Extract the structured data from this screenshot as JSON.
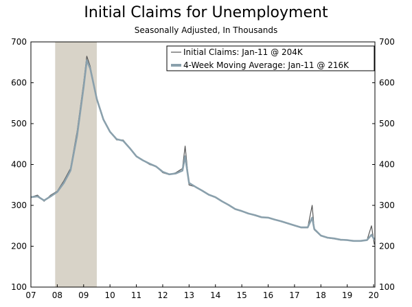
{
  "chart_data": {
    "type": "line",
    "title": "Initial Claims for Unemployment",
    "subtitle": "Seasonally Adjusted, In Thousands",
    "xlabel": "",
    "ylabel": "",
    "x_tick_labels": [
      "07",
      "08",
      "09",
      "10",
      "11",
      "12",
      "13",
      "14",
      "15",
      "16",
      "17",
      "18",
      "19",
      "20"
    ],
    "y_ticks": [
      100,
      200,
      300,
      400,
      500,
      600,
      700
    ],
    "ylim": [
      100,
      700
    ],
    "xlim": [
      2007.0,
      2020.05
    ],
    "grid": false,
    "legend_position": "top-right",
    "shaded_region": {
      "x_start": 2007.92,
      "x_end": 2009.5,
      "color": "#d8d3c8"
    },
    "series": [
      {
        "name": "Initial Claims: Jan-11 @ 204K",
        "color": "#555555",
        "x": [
          2007.0,
          2007.25,
          2007.5,
          2007.75,
          2008.0,
          2008.25,
          2008.5,
          2008.75,
          2009.0,
          2009.12,
          2009.25,
          2009.5,
          2009.75,
          2010.0,
          2010.25,
          2010.5,
          2010.75,
          2011.0,
          2011.25,
          2011.5,
          2011.75,
          2012.0,
          2012.25,
          2012.5,
          2012.75,
          2012.85,
          2013.0,
          2013.25,
          2013.5,
          2013.75,
          2014.0,
          2014.25,
          2014.5,
          2014.75,
          2015.0,
          2015.25,
          2015.5,
          2015.75,
          2016.0,
          2016.25,
          2016.5,
          2016.75,
          2017.0,
          2017.25,
          2017.5,
          2017.67,
          2017.75,
          2018.0,
          2018.25,
          2018.5,
          2018.75,
          2019.0,
          2019.25,
          2019.5,
          2019.75,
          2019.92,
          2020.03
        ],
        "values": [
          320,
          325,
          310,
          325,
          335,
          360,
          390,
          480,
          600,
          665,
          640,
          560,
          510,
          480,
          460,
          460,
          440,
          420,
          410,
          400,
          395,
          380,
          375,
          380,
          390,
          445,
          350,
          345,
          335,
          325,
          320,
          310,
          300,
          290,
          285,
          280,
          275,
          270,
          270,
          265,
          260,
          255,
          250,
          245,
          245,
          300,
          240,
          225,
          220,
          218,
          215,
          215,
          212,
          212,
          215,
          250,
          204
        ]
      },
      {
        "name": "4-Week Moving Average: Jan-11 @ 216K",
        "color": "#8aa0ac",
        "x": [
          2007.0,
          2007.25,
          2007.5,
          2007.75,
          2008.0,
          2008.25,
          2008.5,
          2008.75,
          2009.0,
          2009.12,
          2009.25,
          2009.5,
          2009.75,
          2010.0,
          2010.25,
          2010.5,
          2010.75,
          2011.0,
          2011.25,
          2011.5,
          2011.75,
          2012.0,
          2012.25,
          2012.5,
          2012.75,
          2012.85,
          2013.0,
          2013.25,
          2013.5,
          2013.75,
          2014.0,
          2014.25,
          2014.5,
          2014.75,
          2015.0,
          2015.25,
          2015.5,
          2015.75,
          2016.0,
          2016.25,
          2016.5,
          2016.75,
          2017.0,
          2017.25,
          2017.5,
          2017.67,
          2017.75,
          2018.0,
          2018.25,
          2018.5,
          2018.75,
          2019.0,
          2019.25,
          2019.5,
          2019.75,
          2019.92,
          2020.03
        ],
        "values": [
          320,
          322,
          312,
          322,
          333,
          355,
          385,
          470,
          590,
          655,
          635,
          560,
          510,
          480,
          462,
          458,
          440,
          420,
          410,
          402,
          395,
          382,
          376,
          378,
          385,
          420,
          355,
          345,
          336,
          326,
          320,
          310,
          301,
          291,
          286,
          280,
          276,
          271,
          270,
          265,
          261,
          256,
          251,
          246,
          246,
          270,
          242,
          226,
          221,
          219,
          216,
          215,
          213,
          213,
          215,
          228,
          216
        ]
      }
    ]
  }
}
